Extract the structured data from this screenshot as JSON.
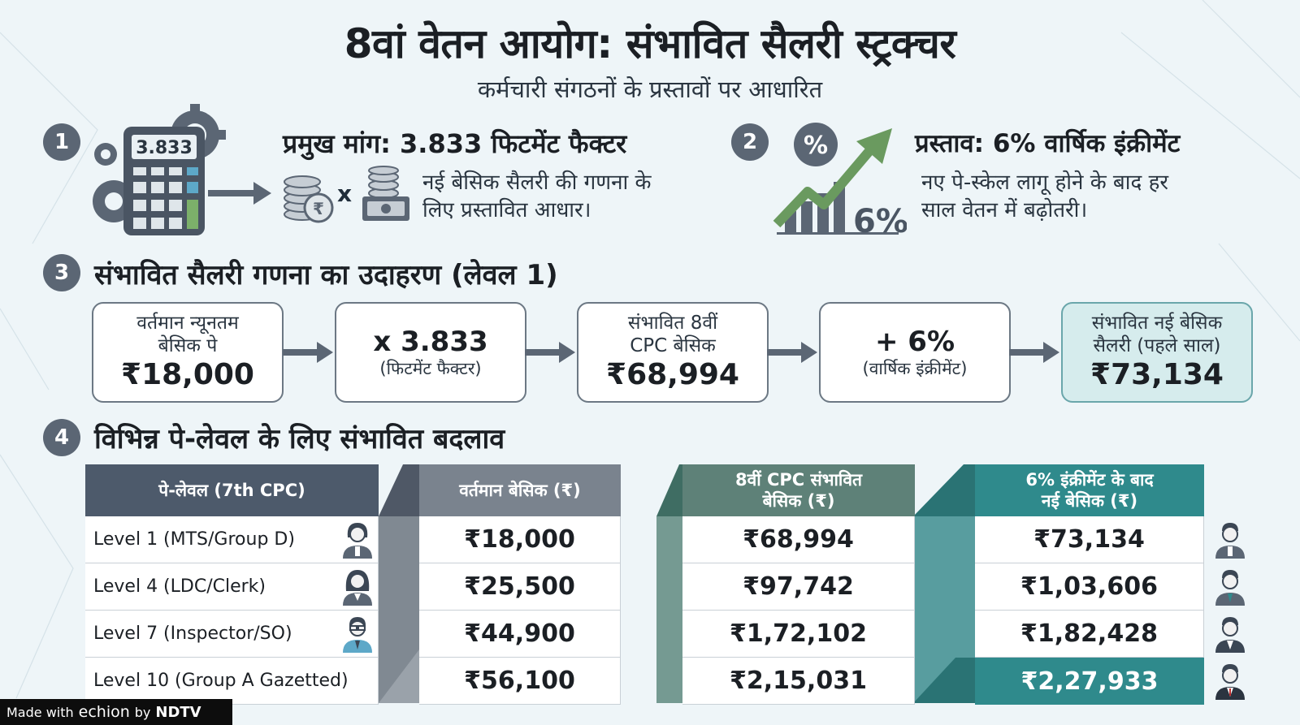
{
  "title": "8वां वेतन आयोग: संभावित सैलरी स्ट्रक्चर",
  "subtitle": "कर्मचारी संगठनों के प्रस्तावों पर आधारित",
  "colors": {
    "slate": "#5b6674",
    "teal": "#2f8a8c",
    "green": "#6a9a5f",
    "light_teal": "#d6eced"
  },
  "section1": {
    "num": "1",
    "heading": "प्रमुख मांग: 3.833 फिटमेंट फैक्टर",
    "calc_display": "3.833",
    "times": "x",
    "desc": [
      "नई बेसिक सैलरी की गणना के",
      "लिए प्रस्तावित आधार।"
    ],
    "icons": [
      "calculator-icon",
      "gear-icon",
      "coins-icon",
      "rupee-icon",
      "cash-stack-icon"
    ]
  },
  "section2": {
    "num": "2",
    "heading": "प्रस्ताव: 6% वार्षिक इंक्रीमेंट",
    "badge": "%",
    "chart_label": "6%",
    "desc": [
      "नए पे-स्केल लागू होने के बाद हर",
      "साल वेतन में बढ़ोतरी।"
    ],
    "icons": [
      "percent-icon",
      "growth-chart-icon"
    ]
  },
  "section3": {
    "num": "3",
    "heading": "संभावित सैलरी गणना का उदाहरण (लेवल 1)",
    "steps": [
      {
        "label_lines": [
          "वर्तमान न्यूनतम",
          "बेसिक पे"
        ],
        "value": "₹18,000"
      },
      {
        "main": "x 3.833",
        "sub": "(फिटमेंट फैक्टर)"
      },
      {
        "label_lines": [
          "संभावित 8वीं",
          "CPC बेसिक"
        ],
        "value": "₹68,994"
      },
      {
        "main": "+ 6%",
        "sub": "(वार्षिक इंक्रीमेंट)"
      },
      {
        "label_lines": [
          "संभावित नई बेसिक",
          "सैलरी (पहले साल)"
        ],
        "value": "₹73,134"
      }
    ]
  },
  "section4": {
    "num": "4",
    "heading": "विभिन्न पे-लेवल के लिए संभावित बदलाव",
    "columns": [
      "पे-लेवल (7th CPC)",
      "वर्तमान बेसिक (₹)",
      [
        "8वीं CPC संभावित",
        "बेसिक (₹)"
      ],
      [
        "6% इंक्रीमेंट के बाद",
        "नई बेसिक (₹)"
      ]
    ],
    "rows": [
      {
        "level": "Level 1 (MTS/Group D)",
        "current": "₹18,000",
        "cpc8": "₹68,994",
        "after": "₹73,134",
        "avatar": "female-employee-icon"
      },
      {
        "level": "Level 4 (LDC/Clerk)",
        "current": "₹25,500",
        "cpc8": "₹97,742",
        "after": "₹1,03,606",
        "avatar": "female-clerk-icon"
      },
      {
        "level": "Level 7 (Inspector/SO)",
        "current": "₹44,900",
        "cpc8": "₹1,72,102",
        "after": "₹1,82,428",
        "avatar": "male-officer-icon"
      },
      {
        "level": "Level 10 (Group A Gazetted)",
        "current": "₹56,100",
        "cpc8": "₹2,15,031",
        "after": "₹2,27,933",
        "avatar": "male-gazetted-officer-icon"
      }
    ]
  },
  "footer": {
    "made_with": "Made with",
    "product": "echion",
    "by": "by",
    "brand": "NDTV"
  }
}
